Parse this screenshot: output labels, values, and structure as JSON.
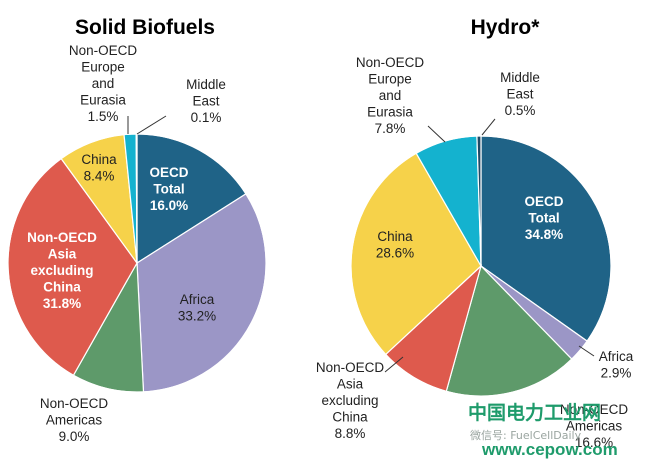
{
  "chart_data": [
    {
      "type": "pie",
      "title": "Solid Biofuels",
      "slices": [
        {
          "key": "oecd",
          "label": [
            "OECD",
            "Total"
          ],
          "value_text": "16.0%",
          "value": 16.0,
          "color": "#1f6387"
        },
        {
          "key": "africa",
          "label": [
            "Africa"
          ],
          "value_text": "33.2%",
          "value": 33.2,
          "color": "#9b96c6"
        },
        {
          "key": "americas",
          "label": [
            "Non-OECD",
            "Americas"
          ],
          "value_text": "9.0%",
          "value": 9.0,
          "color": "#5e9a6a"
        },
        {
          "key": "asia",
          "label": [
            "Non-OECD",
            "Asia",
            "excluding",
            "China"
          ],
          "value_text": "31.8%",
          "value": 31.8,
          "color": "#de5a4d"
        },
        {
          "key": "china",
          "label": [
            "China"
          ],
          "value_text": "8.4%",
          "value": 8.4,
          "color": "#f6d24a"
        },
        {
          "key": "europe",
          "label": [
            "Non-OECD",
            "Europe",
            "and",
            "Eurasia"
          ],
          "value_text": "1.5%",
          "value": 1.5,
          "color": "#14b2cf"
        },
        {
          "key": "mideast",
          "label": [
            "Middle",
            "East"
          ],
          "value_text": "0.1%",
          "value": 0.1,
          "color": "#1f4a66"
        }
      ]
    },
    {
      "type": "pie",
      "title": "Hydro*",
      "slices": [
        {
          "key": "oecd",
          "label": [
            "OECD",
            "Total"
          ],
          "value_text": "34.8%",
          "value": 34.8,
          "color": "#1f6387"
        },
        {
          "key": "africa",
          "label": [
            "Africa"
          ],
          "value_text": "2.9%",
          "value": 2.9,
          "color": "#9b96c6"
        },
        {
          "key": "americas",
          "label": [
            "Non-OECD",
            "Americas"
          ],
          "value_text": "16.6%",
          "value": 16.6,
          "color": "#5e9a6a"
        },
        {
          "key": "asia",
          "label": [
            "Non-OECD",
            "Asia",
            "excluding",
            "China"
          ],
          "value_text": "8.8%",
          "value": 8.8,
          "color": "#de5a4d"
        },
        {
          "key": "china",
          "label": [
            "China"
          ],
          "value_text": "28.6%",
          "value": 28.6,
          "color": "#f6d24a"
        },
        {
          "key": "europe",
          "label": [
            "Non-OECD",
            "Europe",
            "and",
            "Eurasia"
          ],
          "value_text": "7.8%",
          "value": 7.8,
          "color": "#14b2cf"
        },
        {
          "key": "mideast",
          "label": [
            "Middle",
            "East"
          ],
          "value_text": "0.5%",
          "value": 0.5,
          "color": "#1f4a66"
        }
      ]
    }
  ],
  "watermark": {
    "site_name": "中国电力工业网",
    "site_url": "www.cepow.com",
    "wechat": "微信号: FuelCellDaily"
  }
}
